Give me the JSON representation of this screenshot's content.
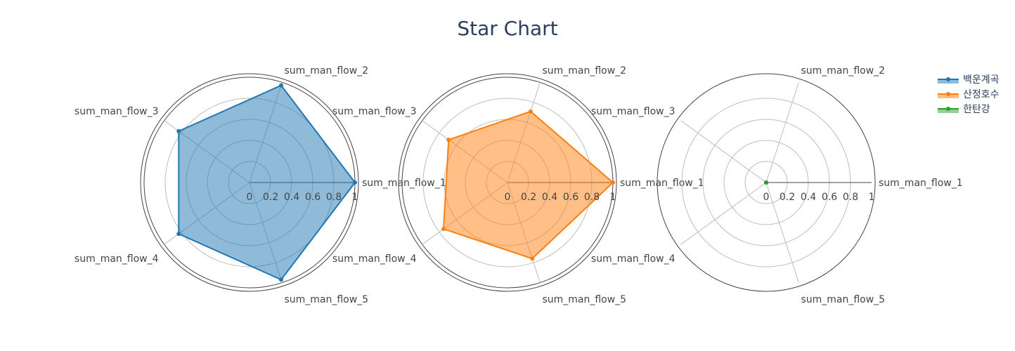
{
  "chart_data": {
    "type": "radar",
    "title": "Star Chart",
    "axes": [
      "sum_man_flow_1",
      "sum_man_flow_2",
      "sum_man_flow_3",
      "sum_man_flow_4",
      "sum_man_flow_5"
    ],
    "radial_range": [
      0,
      1
    ],
    "radial_ticks": [
      "0",
      "0.2",
      "0.4",
      "0.6",
      "0.8",
      "1"
    ],
    "legend_position": "top-right",
    "series": [
      {
        "name": "백운계곡",
        "color": "#1f77b4",
        "fill": "rgba(31,119,180,0.5)",
        "values": [
          1.0,
          0.97,
          0.83,
          0.83,
          0.97
        ]
      },
      {
        "name": "산정호수",
        "color": "#ff7f0e",
        "fill": "rgba(255,127,14,0.5)",
        "values": [
          1.0,
          0.71,
          0.69,
          0.75,
          0.76
        ]
      },
      {
        "name": "한탄강",
        "color": "#2ca02c",
        "fill": "rgba(44,160,44,0.5)",
        "values": [
          0,
          0,
          0,
          0,
          0
        ]
      }
    ]
  }
}
